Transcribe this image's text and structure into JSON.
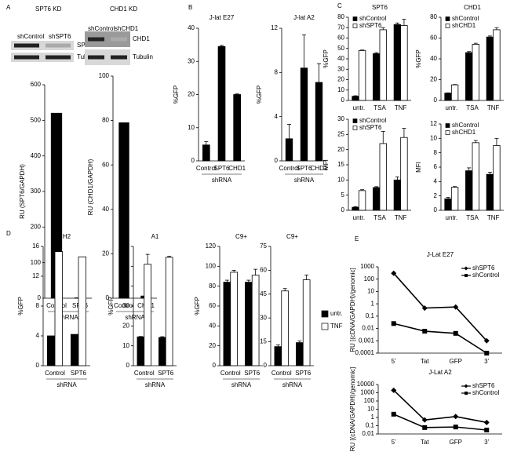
{
  "panel_labels": [
    "A",
    "B",
    "C",
    "D",
    "E"
  ],
  "blots": [
    {
      "title": "SPT6 KD",
      "lanes": [
        "shControl",
        "shSPT6"
      ],
      "bands": [
        "SPT6",
        "Tubulin"
      ]
    },
    {
      "title": "CHD1 KD",
      "lanes": [
        "shControl",
        "shCHD1"
      ],
      "bands": [
        "CHD1",
        "Tubulin"
      ]
    }
  ],
  "chart_data": [
    {
      "type": "bar",
      "y_label": "RU (SPT6/GAPDH)",
      "x_label": "shRNA",
      "categories": [
        "Control",
        "SPT6"
      ],
      "values": [
        520,
        1
      ],
      "color": "#000000",
      "ylim": [
        0,
        600
      ],
      "yticks": [
        0,
        100,
        200,
        300,
        400,
        500,
        600
      ]
    },
    {
      "type": "bar",
      "y_label": "RU (CHD1/GAPDH)",
      "x_label": "shRNA",
      "categories": [
        "Control",
        "CHD1"
      ],
      "values": [
        79,
        1
      ],
      "color": "#000000",
      "ylim": [
        0,
        100
      ],
      "yticks": [
        0,
        20,
        40,
        60,
        80,
        100
      ]
    },
    {
      "type": "bar",
      "title": "J-lat E27",
      "y_label": "%GFP",
      "x_label": "shRNA",
      "categories": [
        "Control",
        "SPT6",
        "CHD1"
      ],
      "values": [
        4.8,
        34.5,
        20
      ],
      "errors": [
        1,
        0.3,
        0.2
      ],
      "color": "#000000",
      "ylim": [
        0,
        40
      ],
      "yticks": [
        0,
        10,
        20,
        30,
        40
      ]
    },
    {
      "type": "bar",
      "title": "J-lat A2",
      "y_label": "%GFP",
      "x_label": "shRNA",
      "categories": [
        "Control",
        "SPT6",
        "CHD1"
      ],
      "values": [
        2,
        8.4,
        7.1
      ],
      "errors": [
        1.3,
        3,
        1.7
      ],
      "color": "#000000",
      "ylim": [
        0,
        12
      ],
      "yticks": [
        0,
        4,
        8,
        12
      ]
    },
    {
      "type": "bar",
      "title": "SPT6",
      "y_label": "%GFP",
      "categories": [
        "untr.",
        "TSA",
        "TNF"
      ],
      "legend": "upper left",
      "ylim": [
        0,
        80
      ],
      "yticks": [
        0,
        10,
        20,
        30,
        40,
        50,
        60,
        70,
        80
      ],
      "series": [
        {
          "name": "shControl",
          "color": "#000000",
          "values": [
            4,
            45,
            73
          ],
          "errors": [
            0.5,
            1,
            1.5
          ]
        },
        {
          "name": "shSPT6",
          "color": "#ffffff",
          "values": [
            48,
            68,
            72
          ],
          "errors": [
            0.5,
            2,
            6
          ]
        }
      ]
    },
    {
      "type": "bar",
      "title": "CHD1",
      "y_label": "%GFP",
      "categories": [
        "untr.",
        "TSA",
        "TNF"
      ],
      "legend": "upper left",
      "ylim": [
        0,
        80
      ],
      "yticks": [
        0,
        20,
        40,
        60,
        80
      ],
      "series": [
        {
          "name": "shControl",
          "color": "#000000",
          "values": [
            7,
            46,
            61
          ],
          "errors": [
            0.3,
            1,
            1
          ]
        },
        {
          "name": "shCHD1",
          "color": "#ffffff",
          "values": [
            15,
            54,
            68
          ],
          "errors": [
            0.3,
            1,
            2
          ]
        }
      ]
    },
    {
      "type": "bar",
      "y_label": "MFI",
      "categories": [
        "untr.",
        "TSA",
        "TNF"
      ],
      "legend": "upper left",
      "ylim": [
        0,
        30
      ],
      "yticks": [
        0,
        5,
        10,
        15,
        20,
        25,
        30
      ],
      "series": [
        {
          "name": "shControl",
          "color": "#000000",
          "values": [
            1,
            7.5,
            10
          ],
          "errors": [
            0.2,
            0.3,
            1
          ]
        },
        {
          "name": "shSPT6",
          "color": "#ffffff",
          "values": [
            6.5,
            22,
            24
          ],
          "errors": [
            0.3,
            4,
            3
          ]
        }
      ]
    },
    {
      "type": "bar",
      "y_label": "MFI",
      "categories": [
        "untr.",
        "TSA",
        "TNF"
      ],
      "legend": "upper left",
      "ylim": [
        0,
        12
      ],
      "yticks": [
        0,
        2,
        4,
        6,
        8,
        10,
        12
      ],
      "series": [
        {
          "name": "shControl",
          "color": "#000000",
          "values": [
            1.6,
            5.5,
            5
          ],
          "errors": [
            0.2,
            0.4,
            0.3
          ]
        },
        {
          "name": "shCHD1",
          "color": "#ffffff",
          "values": [
            3.2,
            9.4,
            9
          ],
          "errors": [
            0.1,
            0.3,
            1
          ]
        }
      ]
    },
    {
      "type": "bar",
      "title": "H2",
      "y_label": "%GFP",
      "x_label": "shRNA",
      "categories": [
        "Control",
        "SPT6"
      ],
      "ylim": [
        0,
        16
      ],
      "yticks": [
        0,
        4,
        8,
        12,
        16
      ],
      "series": [
        {
          "color": "#000000",
          "values": [
            4,
            4.2
          ]
        },
        {
          "color": "#ffffff",
          "values": [
            15.3,
            14.6
          ]
        }
      ]
    },
    {
      "type": "bar",
      "title": "A1",
      "y_label": "%GFP",
      "x_label": "shRNA",
      "categories": [
        "Control",
        "SPT6"
      ],
      "ylim": [
        0,
        60
      ],
      "yticks": [
        0,
        10,
        20,
        30,
        40,
        50,
        60
      ],
      "series": [
        {
          "color": "#000000",
          "values": [
            14.5,
            14.2
          ],
          "errors": [
            0.2,
            0.4
          ]
        },
        {
          "color": "#ffffff",
          "values": [
            51,
            54.5
          ],
          "errors": [
            5,
            0.5
          ]
        }
      ]
    },
    {
      "type": "bar",
      "title": "C9+",
      "y_label": "%GFP",
      "x_label": "shRNA",
      "categories": [
        "Control",
        "SPT6"
      ],
      "ylim": [
        0,
        120
      ],
      "yticks": [
        0,
        20,
        40,
        60,
        80,
        100,
        120
      ],
      "series": [
        {
          "color": "#000000",
          "values": [
            84,
            84
          ],
          "errors": [
            2,
            2
          ]
        },
        {
          "color": "#ffffff",
          "values": [
            94,
            91
          ],
          "errors": [
            2,
            6
          ]
        }
      ]
    },
    {
      "type": "bar",
      "title": "C9+",
      "y_label": "MFI",
      "x_label": "shRNA",
      "categories": [
        "Control",
        "SPT6"
      ],
      "legend": "right",
      "ylim": [
        0,
        75
      ],
      "yticks": [
        0,
        15,
        30,
        45,
        60,
        75
      ],
      "series": [
        {
          "name": "untr.",
          "color": "#000000",
          "values": [
            12,
            14.5
          ],
          "errors": [
            1,
            1
          ]
        },
        {
          "name": "TNF",
          "color": "#ffffff",
          "values": [
            47,
            54
          ],
          "errors": [
            1.5,
            3
          ]
        }
      ]
    },
    {
      "type": "line",
      "title": "J-Lat E27",
      "y_label": "RU [(cDNA/GAPDH)/genomic]",
      "categories": [
        "5’",
        "Tat",
        "GFP",
        "3’"
      ],
      "log_y": true,
      "legend": "upper right",
      "ylim": [
        0.0001,
        1000
      ],
      "yticks": [
        {
          "value": 0.0001,
          "label": "0,0001"
        },
        {
          "value": 0.001,
          "label": "0,001"
        },
        {
          "value": 0.01,
          "label": "0,01"
        },
        {
          "value": 0.1,
          "label": "0,1"
        },
        1,
        10,
        100,
        1000
      ],
      "series": [
        {
          "name": "shSPT6",
          "color": "#000000",
          "marker": "diamond",
          "values": [
            300,
            0.45,
            0.55,
            0.001
          ]
        },
        {
          "name": "shControl",
          "color": "#000000",
          "marker": "square",
          "values": [
            0.025,
            0.006,
            0.004,
            0.0001
          ]
        }
      ]
    },
    {
      "type": "line",
      "title": "J-Lat A2",
      "y_label": "RU [(cDNA/GAPDH)/genomic]",
      "categories": [
        "5’",
        "Tat",
        "GFP",
        "3’"
      ],
      "log_y": true,
      "legend": "upper right",
      "ylim": [
        0.01,
        10000
      ],
      "yticks": [
        {
          "value": 0.01,
          "label": "0,01"
        },
        {
          "value": 0.1,
          "label": "0,1"
        },
        1,
        10,
        100,
        1000,
        10000
      ],
      "series": [
        {
          "name": "shSPT6",
          "color": "#000000",
          "marker": "diamond",
          "values": [
            2000,
            0.5,
            1.3,
            0.25
          ]
        },
        {
          "name": "shControl",
          "color": "#000000",
          "marker": "square",
          "values": [
            2.5,
            0.06,
            0.07,
            0.03
          ]
        }
      ]
    }
  ]
}
